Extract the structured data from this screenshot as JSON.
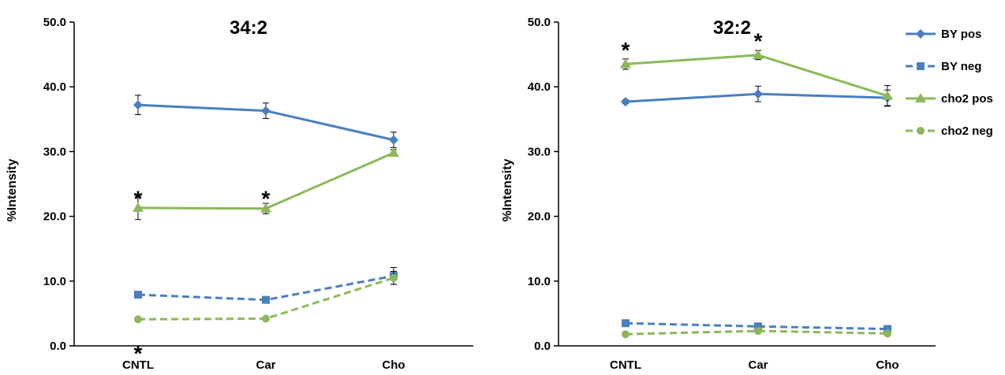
{
  "chart_data": [
    {
      "type": "line",
      "title": "34:2",
      "ylabel": "%Intensity",
      "xlabel": "",
      "ylim": [
        0,
        50
      ],
      "yticks": [
        "0.0",
        "10.0",
        "20.0",
        "30.0",
        "40.0",
        "50.0"
      ],
      "categories": [
        "CNTL",
        "Car",
        "Cho"
      ],
      "series": [
        {
          "name": "BY pos",
          "values": [
            37.2,
            36.3,
            31.8
          ],
          "errors": [
            1.5,
            1.2,
            1.2
          ],
          "color": "#4a7fbf",
          "dash": false,
          "marker": "diamond"
        },
        {
          "name": "BY neg",
          "values": [
            7.9,
            7.1,
            10.8
          ],
          "errors": [
            0.3,
            0.3,
            1.3
          ],
          "color": "#4a7fbf",
          "dash": true,
          "marker": "square"
        },
        {
          "name": "cho2 pos",
          "values": [
            21.3,
            21.2,
            29.8
          ],
          "errors": [
            1.8,
            0.8,
            0.5
          ],
          "color": "#8cb85a",
          "dash": false,
          "marker": "triangle"
        },
        {
          "name": "cho2 neg",
          "values": [
            4.1,
            4.2,
            10.5
          ],
          "errors": [
            0.2,
            0.2,
            1.0
          ],
          "color": "#8cb85a",
          "dash": true,
          "marker": "circle"
        }
      ],
      "annotations": [
        {
          "text": "*",
          "category": "CNTL",
          "y": 23.3
        },
        {
          "text": "*",
          "category": "Car",
          "y": 23.3
        },
        {
          "text": "*",
          "category": "CNTL",
          "y": -0.6
        }
      ]
    },
    {
      "type": "line",
      "title": "32:2",
      "ylabel": "%Intensity",
      "xlabel": "",
      "ylim": [
        0,
        50
      ],
      "yticks": [
        "0.0",
        "10.0",
        "20.0",
        "30.0",
        "40.0",
        "50.0"
      ],
      "categories": [
        "CNTL",
        "Car",
        "Cho"
      ],
      "series": [
        {
          "name": "BY pos",
          "values": [
            37.7,
            38.9,
            38.3
          ],
          "errors": [
            0.3,
            1.2,
            1.2
          ],
          "color": "#4a7fbf",
          "dash": false,
          "marker": "diamond"
        },
        {
          "name": "BY neg",
          "values": [
            3.5,
            3.0,
            2.6
          ],
          "errors": [
            0.3,
            0.3,
            0.2
          ],
          "color": "#4a7fbf",
          "dash": true,
          "marker": "square"
        },
        {
          "name": "cho2 pos",
          "values": [
            43.5,
            44.9,
            38.6
          ],
          "errors": [
            0.8,
            0.7,
            1.6
          ],
          "color": "#8cb85a",
          "dash": false,
          "marker": "triangle"
        },
        {
          "name": "cho2 neg",
          "values": [
            1.8,
            2.3,
            1.9
          ],
          "errors": [
            0.2,
            0.3,
            0.2
          ],
          "color": "#8cb85a",
          "dash": true,
          "marker": "circle"
        }
      ],
      "annotations": [
        {
          "text": "*",
          "category": "CNTL",
          "y": 46.2
        },
        {
          "text": "*",
          "category": "Car",
          "y": 47.6
        }
      ],
      "legend": {
        "placement": "right",
        "entries": [
          "BY pos",
          "BY neg",
          "cho2 pos",
          "cho2 neg"
        ]
      }
    }
  ]
}
